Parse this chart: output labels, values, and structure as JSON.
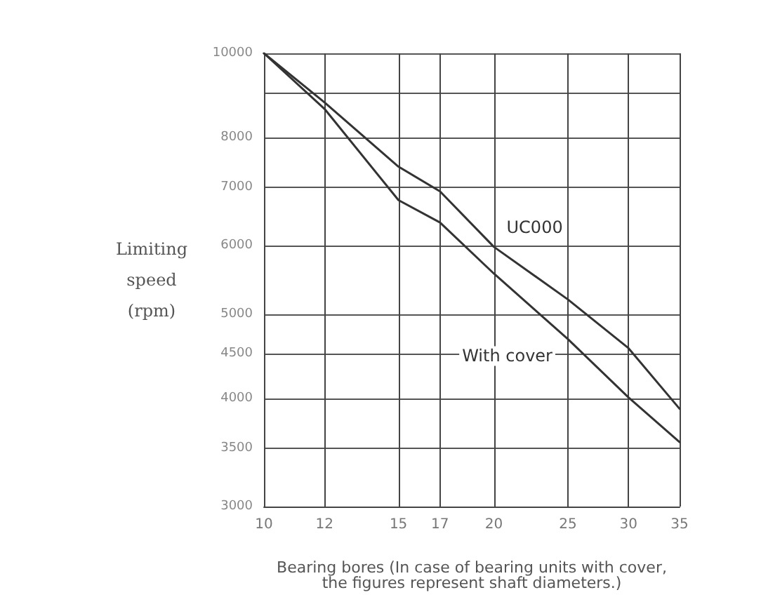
{
  "chart_data": {
    "type": "line",
    "xlabel": "Bearing bores (In case of bearing units with cover,\nthe figures represent shaft diameters.)",
    "ylabel": "Limiting\nspeed\n(rpm)",
    "log": "xy",
    "grid": true,
    "marker": "none",
    "line_style": "solid",
    "legend": false,
    "x": [
      10,
      12,
      15,
      17,
      20,
      25,
      30,
      35
    ],
    "series": [
      {
        "name": "UC000",
        "color": "#333333",
        "values": [
          10000,
          8780,
          7400,
          6930,
          5980,
          5200,
          4570,
          3890
        ]
      },
      {
        "name": "With cover",
        "color": "#333333",
        "values": [
          10000,
          8630,
          6770,
          6380,
          5570,
          4680,
          4010,
          3560
        ]
      }
    ],
    "xlim": [
      10,
      35
    ],
    "xticks": [
      10,
      12,
      15,
      17,
      20,
      25,
      30,
      35
    ],
    "ylim": [
      3000,
      10000
    ],
    "yticks": [
      10000,
      {
        "value": 9000,
        "label": null
      },
      8000,
      7000,
      6000,
      5000,
      4500,
      4000,
      3500,
      3000
    ]
  }
}
